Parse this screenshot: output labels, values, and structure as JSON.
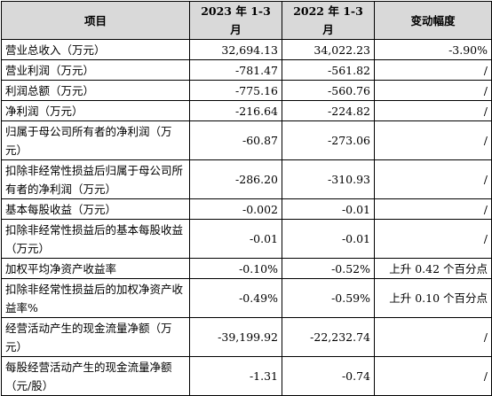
{
  "table": {
    "headers": [
      "项目",
      "2023 年 1-3 月",
      "2022 年 1-3 月",
      "变动幅度"
    ],
    "rows": [
      {
        "item": "营业总收入（万元）",
        "y2023": "32,694.13",
        "y2022": "34,022.23",
        "change": "-3.90%"
      },
      {
        "item": "营业利润（万元）",
        "y2023": "-781.47",
        "y2022": "-561.82",
        "change": "/"
      },
      {
        "item": "利润总额（万元）",
        "y2023": "-775.16",
        "y2022": "-560.76",
        "change": "/"
      },
      {
        "item": "净利润（万元）",
        "y2023": "-216.64",
        "y2022": "-224.82",
        "change": "/"
      },
      {
        "item": "归属于母公司所有者的净利润（万元）",
        "y2023": "-60.87",
        "y2022": "-273.06",
        "change": "/"
      },
      {
        "item": "扣除非经常性损益后归属于母公司所有者的净利润（万元）",
        "y2023": "-286.20",
        "y2022": "-310.93",
        "change": "/"
      },
      {
        "item": "基本每股收益（万元）",
        "y2023": "-0.002",
        "y2022": "-0.01",
        "change": "/"
      },
      {
        "item": "扣除非经常性损益后的基本每股收益（万元）",
        "y2023": "-0.01",
        "y2022": "-0.01",
        "change": "/"
      },
      {
        "item": "加权平均净资产收益率",
        "y2023": "-0.10%",
        "y2022": "-0.52%",
        "change": "上升 0.42 个百分点"
      },
      {
        "item": "扣除非经常性损益后的加权净资产收益率%",
        "y2023": "-0.49%",
        "y2022": "-0.59%",
        "change": "上升 0.10 个百分点"
      },
      {
        "item": "经营活动产生的现金流量净额（万元）",
        "y2023": "-39,199.92",
        "y2022": "-22,232.74",
        "change": "/"
      },
      {
        "item": "每股经营活动产生的现金流量净额（元/股）",
        "y2023": "-1.31",
        "y2022": "-0.74",
        "change": "/"
      }
    ]
  }
}
